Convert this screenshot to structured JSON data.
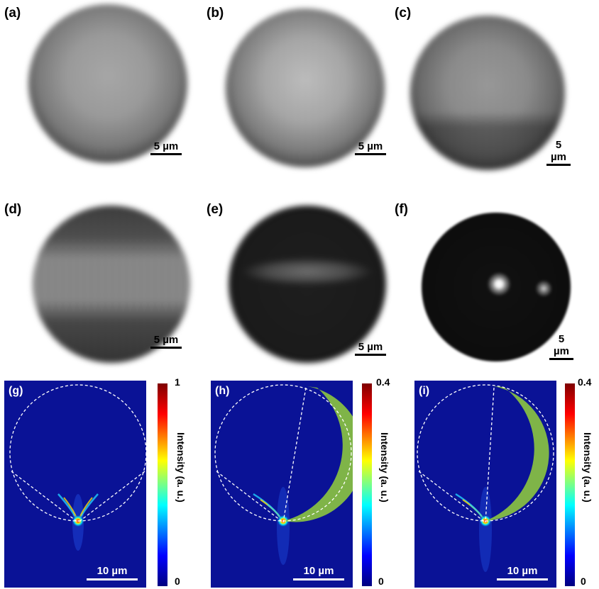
{
  "panels_top": [
    {
      "label": "(a)",
      "scale": "5 µm"
    },
    {
      "label": "(b)",
      "scale": "5 µm"
    },
    {
      "label": "(c)",
      "scale": "5 µm"
    }
  ],
  "panels_mid": [
    {
      "label": "(d)",
      "scale": "5 µm"
    },
    {
      "label": "(e)",
      "scale": "5 µm"
    },
    {
      "label": "(f)",
      "scale": "5 µm"
    }
  ],
  "panels_sim": [
    {
      "label": "(g)",
      "scale": "10 µm",
      "cmax": "1",
      "cmin": "0",
      "ctitle": "Intensity (a. u.)"
    },
    {
      "label": "(h)",
      "scale": "10 µm",
      "cmax": "0.4",
      "cmin": "0",
      "ctitle": "Intensity (a. u.)"
    },
    {
      "label": "(i)",
      "scale": "10 µm",
      "cmax": "0.4",
      "cmin": "0",
      "ctitle": "Intensity (a. u.)"
    }
  ],
  "colors": {
    "sim_background": "#0a1296",
    "colormap": [
      "#00007f",
      "#0000ff",
      "#00ffff",
      "#ffff00",
      "#ff0000",
      "#7f0000"
    ],
    "shell": "#8cc63f",
    "guide_lines": "#ffffff"
  }
}
